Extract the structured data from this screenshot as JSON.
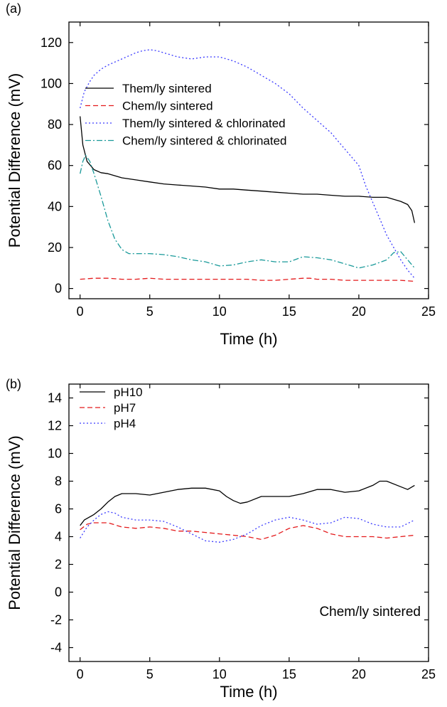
{
  "chart_data": [
    {
      "type": "line",
      "panel_label": "(a)",
      "xlabel": "Time (h)",
      "ylabel": "Potential Difference (mV)",
      "xlim": [
        -0.8,
        25
      ],
      "ylim": [
        -5,
        130
      ],
      "xticks": [
        0,
        5,
        10,
        15,
        20,
        25
      ],
      "yticks": [
        0,
        20,
        40,
        60,
        80,
        100,
        120
      ],
      "legend_position": "upper-left",
      "series": [
        {
          "name": "Them/ly sintered",
          "color": "#000000",
          "dash": "solid",
          "x": [
            0,
            0.2,
            0.5,
            1,
            1.5,
            2,
            3,
            4,
            5,
            6,
            7,
            8,
            9,
            10,
            11,
            12,
            13,
            14,
            15,
            16,
            17,
            18,
            19,
            20,
            21,
            22,
            23,
            23.5,
            23.8,
            24
          ],
          "y": [
            84,
            70,
            62,
            58,
            56.5,
            56,
            54,
            53,
            52,
            51,
            50.5,
            50,
            49.5,
            48.5,
            48.5,
            48,
            47.5,
            47,
            46.5,
            46,
            46,
            45.5,
            45,
            45,
            44.5,
            44.5,
            42.5,
            41,
            38,
            32
          ]
        },
        {
          "name": "Chem/ly sintered",
          "color": "#e41a1c",
          "dash": "dashed",
          "x": [
            0,
            1,
            2,
            3,
            4,
            5,
            6,
            7,
            8,
            9,
            10,
            11,
            12,
            13,
            14,
            15,
            16,
            16.5,
            17,
            18,
            19,
            20,
            21,
            22,
            23,
            24
          ],
          "y": [
            4.5,
            5,
            5,
            4.5,
            4.5,
            5,
            4.5,
            4.5,
            4.5,
            4.5,
            4.5,
            4.5,
            4.5,
            4,
            4,
            4.5,
            5,
            5,
            4.5,
            4.5,
            4,
            4,
            4,
            4,
            4,
            3.5
          ]
        },
        {
          "name": "Them/ly sintered & chlorinated",
          "color": "#3a3aff",
          "dash": "dotted",
          "x": [
            0,
            0.3,
            0.7,
            1,
            1.5,
            2,
            3,
            4,
            4.5,
            5,
            5.5,
            6,
            7,
            8,
            9,
            10,
            11,
            12,
            13,
            14,
            15,
            16,
            17,
            18,
            19,
            20,
            20.5,
            21,
            21.5,
            22,
            22.5,
            23,
            23.5,
            24
          ],
          "y": [
            88,
            96,
            101,
            104,
            107,
            109,
            112,
            115,
            116,
            116.5,
            116,
            115,
            113,
            112,
            113,
            113,
            111,
            108,
            104,
            100,
            95,
            88,
            82,
            76,
            68,
            60,
            50,
            42,
            34,
            26,
            20,
            14,
            9,
            5
          ]
        },
        {
          "name": "Chem/ly sintered & chlorinated",
          "color": "#1a9a9a",
          "dash": "dashdot",
          "x": [
            0,
            0.2,
            0.4,
            0.7,
            1,
            1.5,
            2,
            2.5,
            3,
            3.5,
            4,
            5,
            6,
            7,
            8,
            9,
            10,
            11,
            12,
            13,
            14,
            15,
            16,
            17,
            18,
            19,
            20,
            21,
            22,
            22.5,
            23,
            23.5,
            24
          ],
          "y": [
            56,
            62,
            65,
            62,
            56,
            45,
            33,
            24,
            19,
            17,
            17,
            17,
            16.5,
            15.5,
            14,
            13,
            11,
            11.5,
            13,
            14,
            13,
            13,
            15.5,
            15,
            14,
            12,
            10,
            11.5,
            14,
            17.5,
            18,
            14,
            10
          ]
        }
      ]
    },
    {
      "type": "line",
      "panel_label": "(b)",
      "xlabel": "Time (h)",
      "ylabel": "Potential Difference (mV)",
      "xlim": [
        -0.8,
        25
      ],
      "ylim": [
        -5,
        15
      ],
      "xticks": [
        0,
        5,
        10,
        15,
        20,
        25
      ],
      "yticks": [
        -4,
        -2,
        0,
        2,
        4,
        6,
        8,
        10,
        12,
        14
      ],
      "legend_position": "upper-left",
      "annotation": "Chem/ly sintered",
      "series": [
        {
          "name": "pH10",
          "color": "#000000",
          "dash": "solid",
          "x": [
            0,
            0.3,
            1,
            1.5,
            2,
            2.5,
            3,
            4,
            5,
            6,
            7,
            8,
            9,
            10,
            10.5,
            11,
            11.5,
            12,
            13,
            14,
            15,
            16,
            17,
            18,
            19,
            20,
            21,
            21.5,
            22,
            23,
            23.5,
            24
          ],
          "y": [
            4.8,
            5.2,
            5.6,
            6.0,
            6.5,
            6.9,
            7.1,
            7.1,
            7.0,
            7.2,
            7.4,
            7.5,
            7.5,
            7.3,
            6.9,
            6.6,
            6.4,
            6.5,
            6.9,
            6.9,
            6.9,
            7.1,
            7.4,
            7.4,
            7.2,
            7.3,
            7.7,
            8.0,
            8.0,
            7.6,
            7.4,
            7.7
          ]
        },
        {
          "name": "pH7",
          "color": "#e41a1c",
          "dash": "dashed",
          "x": [
            0,
            0.5,
            1,
            2,
            3,
            4,
            5,
            6,
            7,
            8,
            9,
            10,
            11,
            12,
            13,
            14,
            15,
            16,
            17,
            18,
            19,
            20,
            21,
            22,
            23,
            24
          ],
          "y": [
            4.5,
            4.9,
            5.0,
            5.0,
            4.7,
            4.6,
            4.7,
            4.6,
            4.4,
            4.4,
            4.3,
            4.2,
            4.1,
            4.0,
            3.8,
            4.1,
            4.6,
            4.8,
            4.6,
            4.2,
            4.0,
            4.0,
            4.0,
            3.9,
            4.0,
            4.1
          ]
        },
        {
          "name": "pH4",
          "color": "#3a3aff",
          "dash": "dotted",
          "x": [
            0,
            0.5,
            1,
            1.5,
            2,
            2.5,
            3,
            4,
            5,
            6,
            7,
            8,
            9,
            10,
            11,
            12,
            13,
            14,
            15,
            16,
            17,
            18,
            19,
            20,
            21,
            22,
            23,
            24
          ],
          "y": [
            3.9,
            4.7,
            5.2,
            5.6,
            5.8,
            5.7,
            5.4,
            5.2,
            5.2,
            5.1,
            4.7,
            4.2,
            3.7,
            3.6,
            3.8,
            4.2,
            4.8,
            5.2,
            5.4,
            5.2,
            4.9,
            5.0,
            5.4,
            5.3,
            4.9,
            4.7,
            4.7,
            5.2
          ]
        }
      ]
    }
  ]
}
